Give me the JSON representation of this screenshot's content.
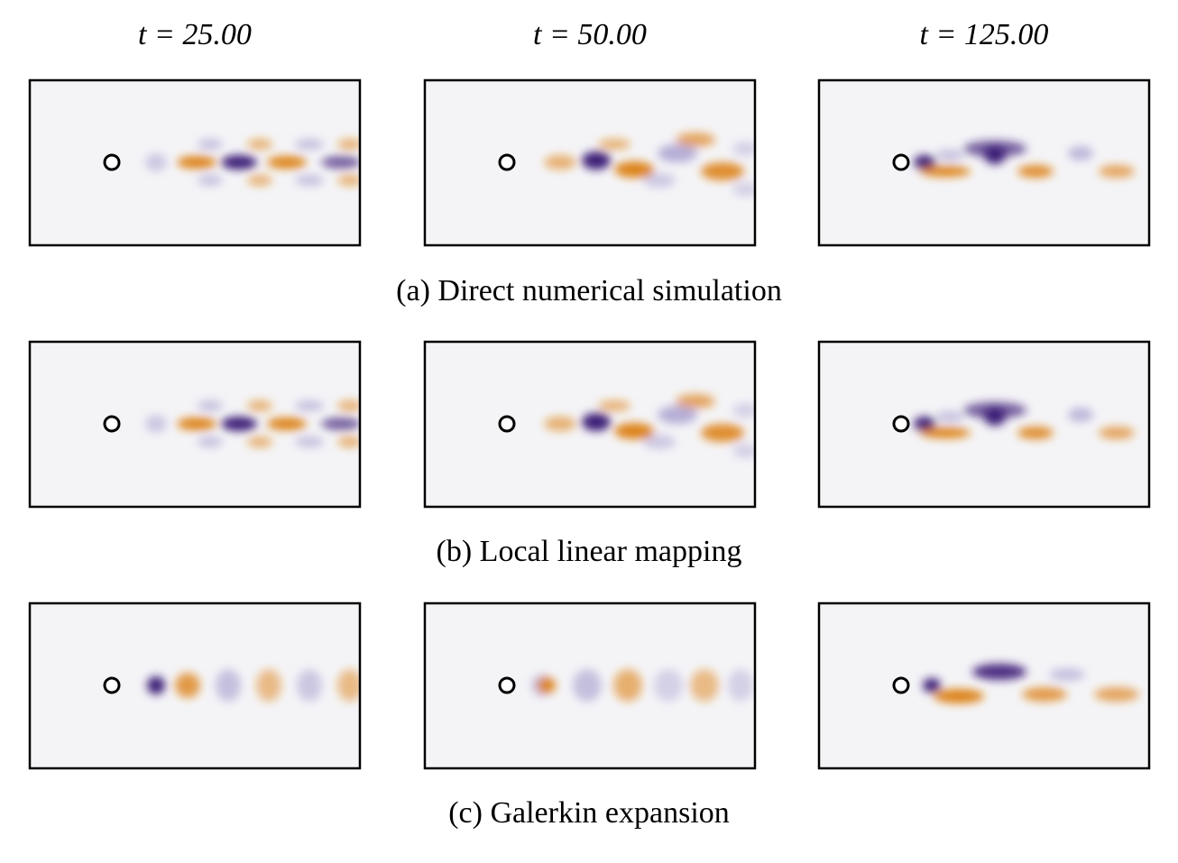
{
  "columns": [
    "t = 25.00",
    "t = 50.00",
    "t = 125.00"
  ],
  "rows": [
    {
      "caption": "(a) Direct numerical simulation"
    },
    {
      "caption": "(b) Local linear mapping"
    },
    {
      "caption": "(c) Galerkin expansion"
    }
  ]
}
